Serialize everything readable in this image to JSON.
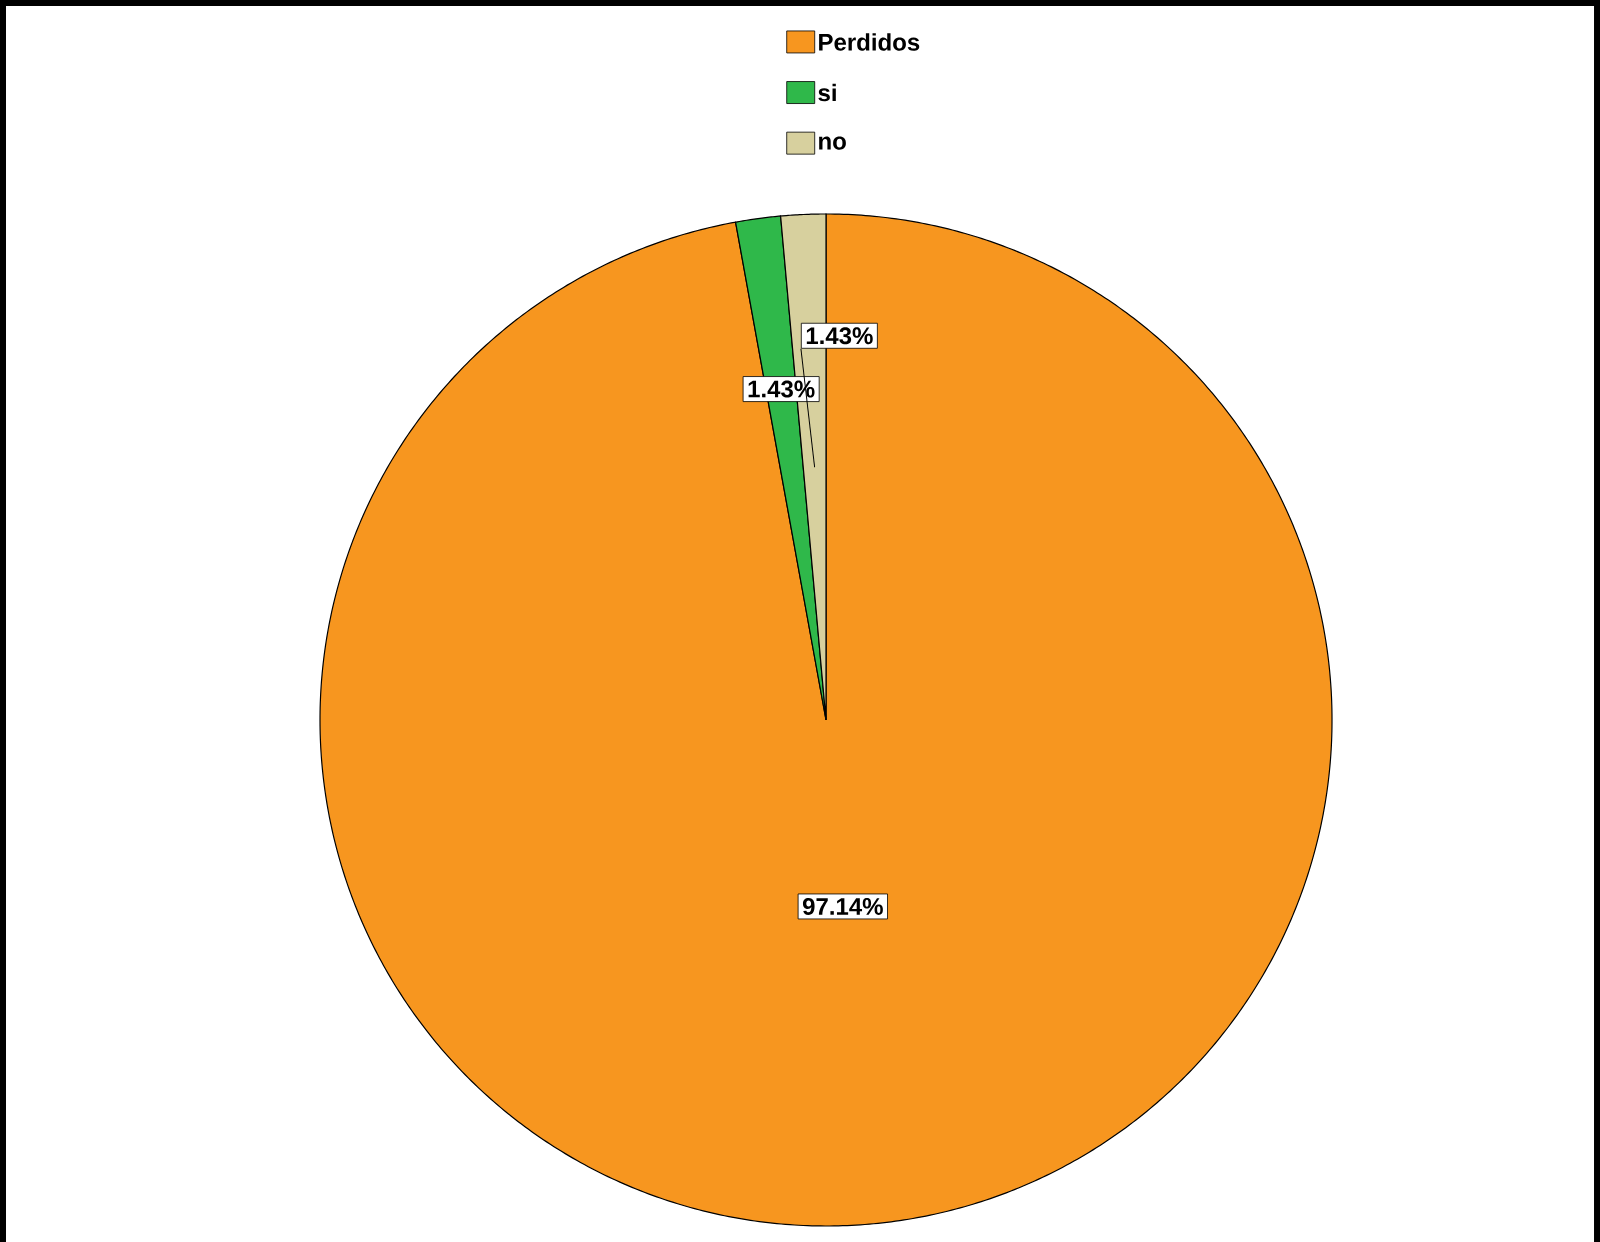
{
  "chart_data": {
    "type": "pie",
    "categories": [
      "Perdidos",
      "si",
      "no"
    ],
    "values": [
      97.14,
      1.43,
      1.43
    ],
    "colors": [
      "#f7961f",
      "#2fb84a",
      "#d7d09e"
    ],
    "value_labels": [
      "97.14%",
      "1.43%",
      "1.43%"
    ],
    "legend": "top"
  }
}
